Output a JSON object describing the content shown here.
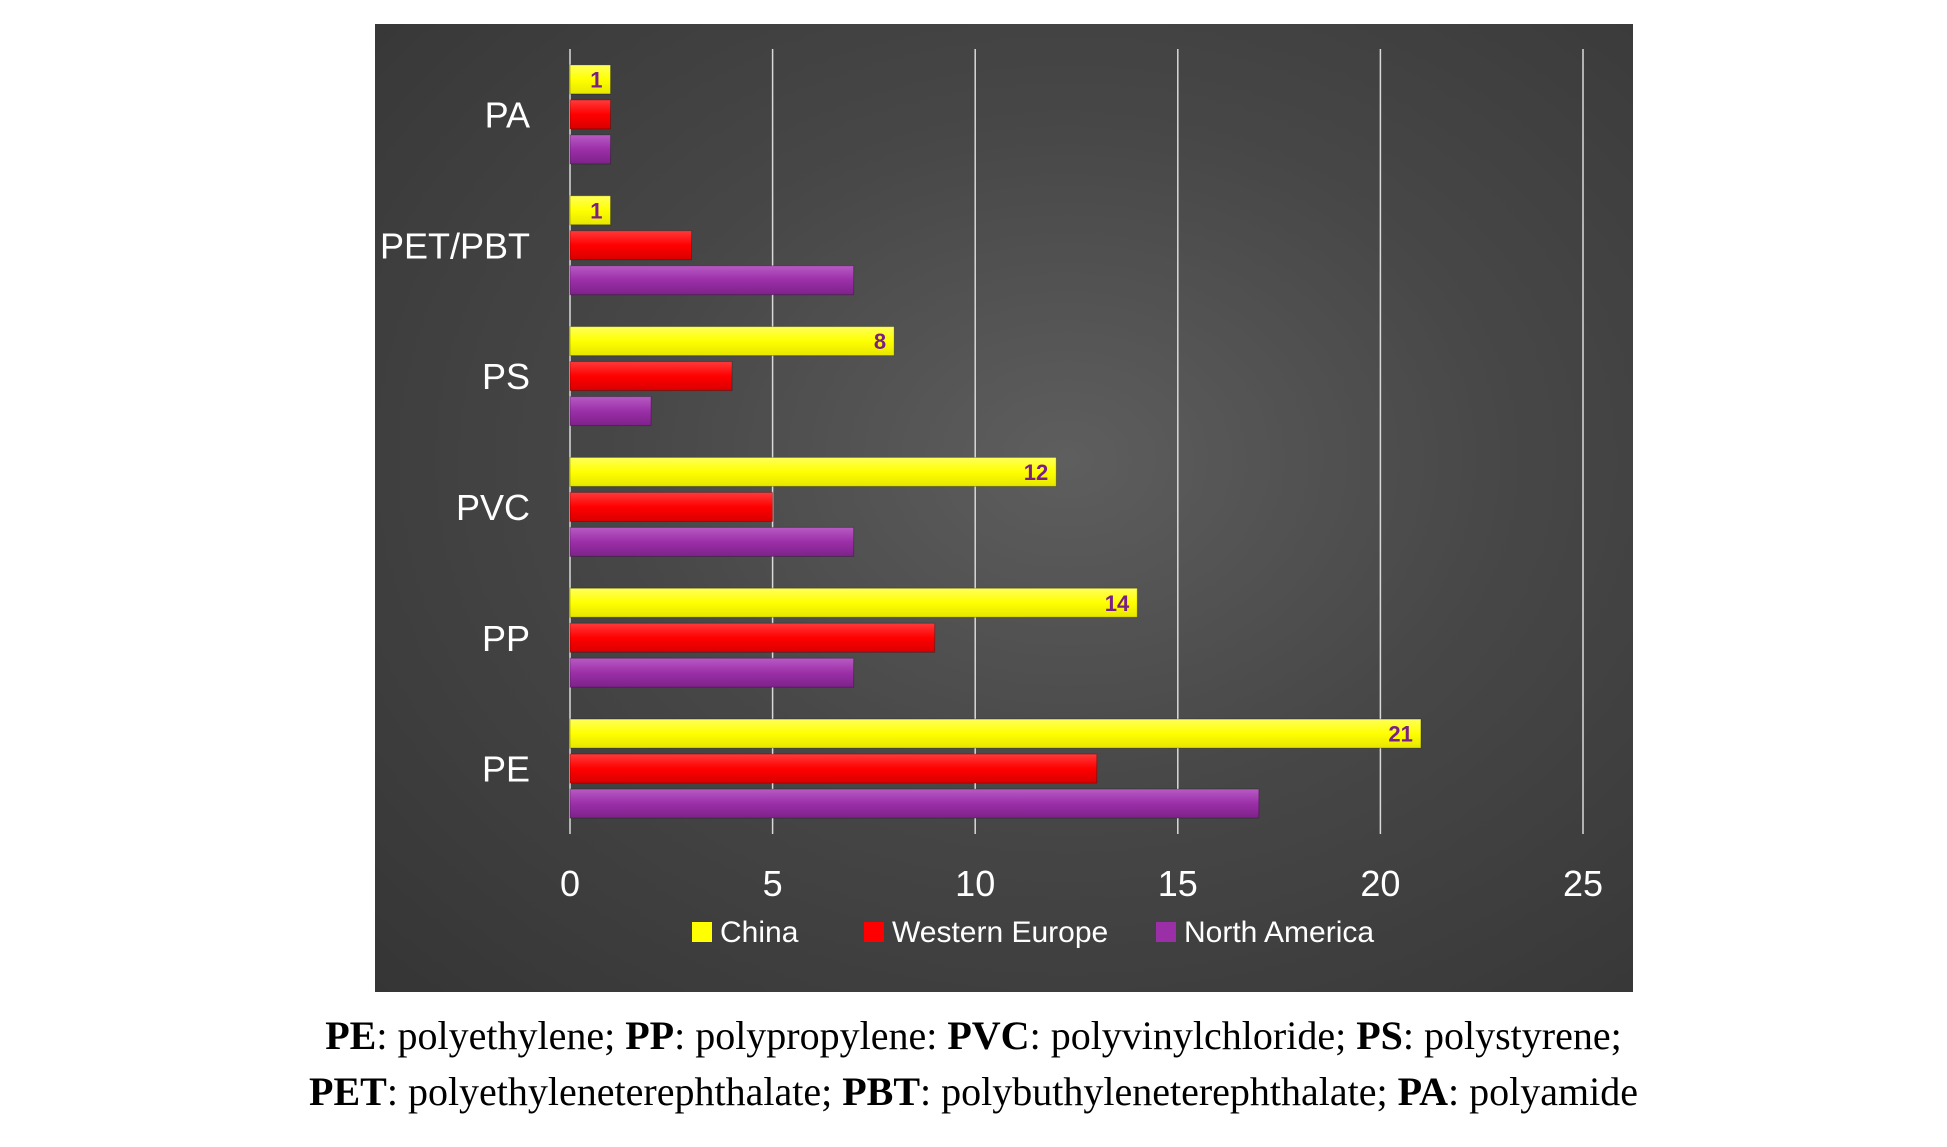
{
  "chart_data": {
    "type": "bar",
    "orientation": "horizontal",
    "categories": [
      "PE",
      "PP",
      "PVC",
      "PS",
      "PET/PBT",
      "PA"
    ],
    "series": [
      {
        "name": "China",
        "color": "#ffff00",
        "values": [
          21,
          14,
          12,
          8,
          1,
          1
        ]
      },
      {
        "name": "Western Europe",
        "color": "#ff0000",
        "values": [
          13,
          9,
          5,
          4,
          3,
          1
        ]
      },
      {
        "name": "North America",
        "color": "#9b2fa8",
        "values": [
          17,
          7,
          7,
          2,
          7,
          1
        ]
      }
    ],
    "data_labels_series": "China",
    "xlim": [
      0,
      25
    ],
    "xticks": [
      "0",
      "5",
      "10",
      "15",
      "20",
      "25"
    ],
    "grid": "vertical",
    "legend": "bottom"
  },
  "caption": {
    "line1": [
      {
        "bold": "PE",
        "text": ": polyethylene; "
      },
      {
        "bold": "PP",
        "text": ": polypropylene: "
      },
      {
        "bold": "PVC",
        "text": ": polyvinylchloride; "
      },
      {
        "bold": "PS",
        "text": ": polystyrene;"
      }
    ],
    "line2": [
      {
        "bold": "PET",
        "text": ": polyethyleneterephthalate; "
      },
      {
        "bold": "PBT",
        "text": ": polybuthyleneterephthalate; "
      },
      {
        "bold": "PA",
        "text": ": polyamide"
      }
    ]
  }
}
